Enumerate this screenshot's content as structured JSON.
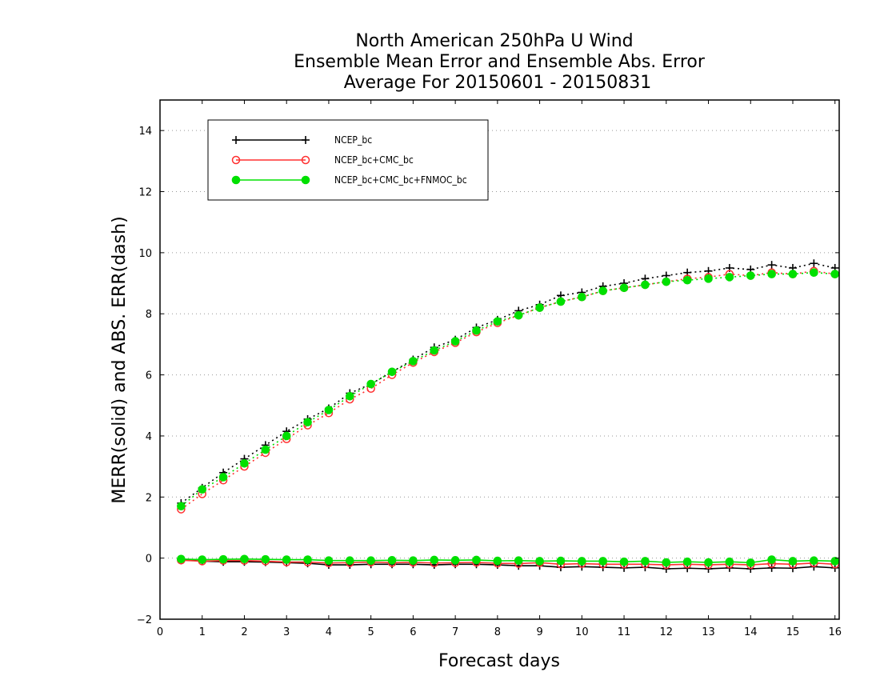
{
  "chart_data": {
    "type": "line",
    "title_lines": [
      "North American 250hPa U Wind",
      "Ensemble Mean Error and Ensemble Abs. Error",
      "Average For 20150601 - 20150831"
    ],
    "xlabel": "Forecast days",
    "ylabel": "MERR(solid) and ABS. ERR(dash)",
    "xlim": [
      0,
      16.1
    ],
    "ylim": [
      -2,
      15
    ],
    "xticks": [
      0,
      1,
      2,
      3,
      4,
      5,
      6,
      7,
      8,
      9,
      10,
      11,
      12,
      13,
      14,
      15,
      16
    ],
    "yticks": [
      -2,
      0,
      2,
      4,
      6,
      8,
      10,
      12,
      14
    ],
    "grid": "horizontal dotted",
    "legend_position": "top-left",
    "x": [
      0.5,
      1.0,
      1.5,
      2.0,
      2.5,
      3.0,
      3.5,
      4.0,
      4.5,
      5.0,
      5.5,
      6.0,
      6.5,
      7.0,
      7.5,
      8.0,
      8.5,
      9.0,
      9.5,
      10.0,
      10.5,
      11.0,
      11.5,
      12.0,
      12.5,
      13.0,
      13.5,
      14.0,
      14.5,
      15.0,
      15.5,
      16.0
    ],
    "series": [
      {
        "name": "NCEP_bc",
        "color": "#000000",
        "marker": "plus",
        "merr": [
          -0.05,
          -0.1,
          -0.12,
          -0.12,
          -0.13,
          -0.15,
          -0.17,
          -0.22,
          -0.22,
          -0.2,
          -0.2,
          -0.2,
          -0.22,
          -0.2,
          -0.2,
          -0.22,
          -0.25,
          -0.25,
          -0.3,
          -0.28,
          -0.3,
          -0.32,
          -0.3,
          -0.35,
          -0.33,
          -0.35,
          -0.32,
          -0.35,
          -0.32,
          -0.33,
          -0.28,
          -0.32
        ],
        "abs_err": [
          1.8,
          2.3,
          2.8,
          3.25,
          3.7,
          4.15,
          4.55,
          4.9,
          5.4,
          5.7,
          6.1,
          6.5,
          6.9,
          7.15,
          7.55,
          7.8,
          8.1,
          8.3,
          8.6,
          8.7,
          8.9,
          9.0,
          9.15,
          9.25,
          9.35,
          9.4,
          9.5,
          9.45,
          9.6,
          9.5,
          9.65,
          9.5
        ]
      },
      {
        "name": "NCEP_bc+CMC_bc",
        "color": "#ff3030",
        "marker": "open-circle",
        "merr": [
          -0.07,
          -0.1,
          -0.08,
          -0.08,
          -0.1,
          -0.13,
          -0.13,
          -0.16,
          -0.15,
          -0.13,
          -0.15,
          -0.14,
          -0.16,
          -0.15,
          -0.14,
          -0.17,
          -0.18,
          -0.15,
          -0.2,
          -0.18,
          -0.2,
          -0.2,
          -0.2,
          -0.22,
          -0.2,
          -0.22,
          -0.2,
          -0.22,
          -0.18,
          -0.2,
          -0.16,
          -0.2
        ],
        "abs_err": [
          1.6,
          2.1,
          2.55,
          3.0,
          3.45,
          3.9,
          4.35,
          4.75,
          5.2,
          5.55,
          6.0,
          6.4,
          6.75,
          7.05,
          7.4,
          7.7,
          7.95,
          8.2,
          8.4,
          8.55,
          8.75,
          8.85,
          8.95,
          9.05,
          9.15,
          9.2,
          9.3,
          9.25,
          9.35,
          9.3,
          9.4,
          9.3
        ]
      },
      {
        "name": "NCEP_bc+CMC_bc+FNMOC_bc",
        "color": "#00e000",
        "marker": "filled-circle",
        "merr": [
          -0.03,
          -0.05,
          -0.04,
          -0.03,
          -0.04,
          -0.05,
          -0.05,
          -0.08,
          -0.08,
          -0.08,
          -0.07,
          -0.08,
          -0.06,
          -0.07,
          -0.06,
          -0.09,
          -0.08,
          -0.1,
          -0.09,
          -0.1,
          -0.1,
          -0.12,
          -0.1,
          -0.14,
          -0.12,
          -0.14,
          -0.12,
          -0.15,
          -0.05,
          -0.1,
          -0.08,
          -0.1
        ],
        "abs_err": [
          1.7,
          2.25,
          2.65,
          3.1,
          3.55,
          4.0,
          4.45,
          4.85,
          5.3,
          5.7,
          6.1,
          6.45,
          6.8,
          7.1,
          7.45,
          7.75,
          7.95,
          8.2,
          8.4,
          8.55,
          8.75,
          8.85,
          8.95,
          9.05,
          9.1,
          9.15,
          9.2,
          9.25,
          9.3,
          9.3,
          9.35,
          9.3
        ]
      }
    ]
  }
}
